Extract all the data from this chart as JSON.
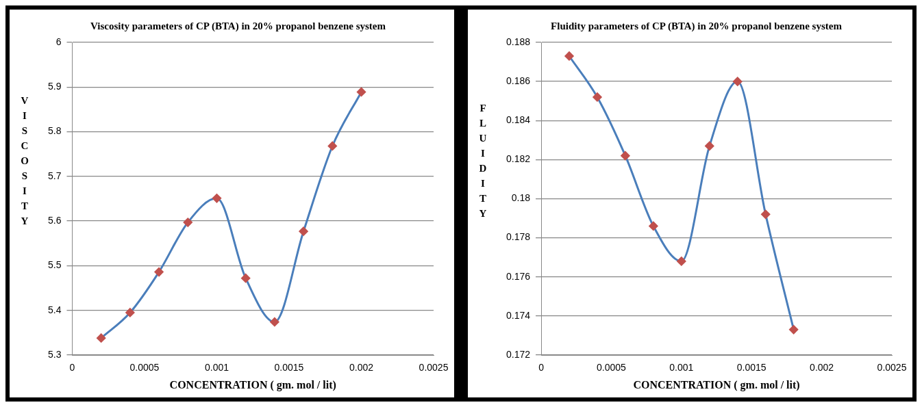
{
  "chart_data": [
    {
      "type": "line",
      "title": "Viscosity parameters of CP (BTA) in 20% propanol benzene system",
      "xlabel": "CONCENTRATION ( gm. mol / lit)",
      "ylabel": "VISCOSITY",
      "x": [
        0.0002,
        0.0004,
        0.0006,
        0.0008,
        0.001,
        0.0012,
        0.0014,
        0.0016,
        0.0018,
        0.002
      ],
      "series": [
        {
          "color": "#4a7ebb",
          "values": [
            5.338,
            5.395,
            5.486,
            5.597,
            5.651,
            5.472,
            5.374,
            5.577,
            5.768,
            5.889
          ]
        }
      ],
      "xlim": [
        0,
        0.0025
      ],
      "xticks": [
        0,
        0.0005,
        0.001,
        0.0015,
        0.002,
        0.0025
      ],
      "ylim": [
        5.3,
        6
      ],
      "yticks": [
        5.3,
        5.4,
        5.5,
        5.6,
        5.7,
        5.8,
        5.9,
        6
      ],
      "grid": "y",
      "legend": false,
      "marker": "diamond",
      "line_style": "solid"
    },
    {
      "type": "line",
      "title": "Fluidity parameters of CP (BTA) in 20% propanol benzene system",
      "xlabel": "CONCENTRATION ( gm. mol / lit)",
      "ylabel": "FLUIDITY",
      "x": [
        0.0002,
        0.0004,
        0.0006,
        0.0008,
        0.001,
        0.0012,
        0.0014,
        0.0016,
        0.0018
      ],
      "series": [
        {
          "color": "#4a7ebb",
          "values": [
            0.1873,
            0.1852,
            0.1822,
            0.1786,
            0.1768,
            0.1827,
            0.186,
            0.1792,
            0.1733
          ]
        }
      ],
      "xlim": [
        0,
        0.0025
      ],
      "xticks": [
        0,
        0.0005,
        0.001,
        0.0015,
        0.002,
        0.0025
      ],
      "ylim": [
        0.172,
        0.188
      ],
      "yticks": [
        0.172,
        0.174,
        0.176,
        0.178,
        0.18,
        0.182,
        0.184,
        0.186,
        0.188
      ],
      "grid": "y",
      "legend": false,
      "marker": "diamond",
      "line_style": "solid"
    }
  ]
}
